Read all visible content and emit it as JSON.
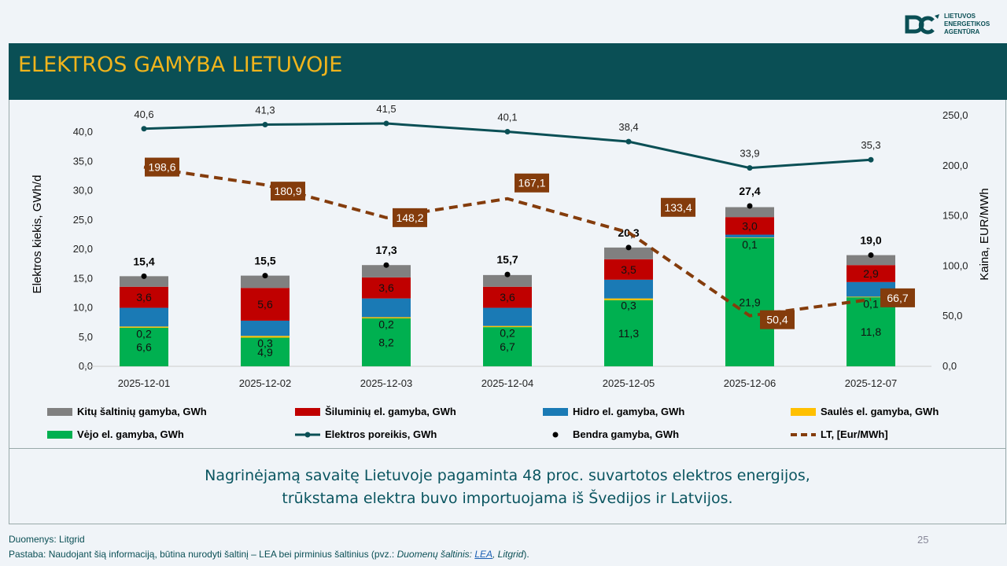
{
  "header": {
    "title": "ELEKTROS GAMYBA LIETUVOJE"
  },
  "logo": {
    "lines": [
      "LIETUVOS",
      "ENERGETIKOS",
      "AGENTŪRA"
    ]
  },
  "chart_data": {
    "type": "bar",
    "stacked": true,
    "categories": [
      "2025-12-01",
      "2025-12-02",
      "2025-12-03",
      "2025-12-04",
      "2025-12-05",
      "2025-12-06",
      "2025-12-07"
    ],
    "ylabel": "Elektros kiekis, GWh/d",
    "y2label": "Kaina, EUR/MWh",
    "ylim": [
      0,
      45
    ],
    "yticks": [
      "0,0",
      "5,0",
      "10,0",
      "15,0",
      "20,0",
      "25,0",
      "30,0",
      "35,0",
      "40,0"
    ],
    "y2lim": [
      0,
      262.5
    ],
    "y2ticks": [
      "0,0",
      "50,0",
      "100,0",
      "150,0",
      "200,0",
      "250,0"
    ],
    "series": [
      {
        "name": "Vėjo el. gamyba, GWh",
        "color": "#00b050",
        "values": [
          6.6,
          4.9,
          8.2,
          6.7,
          11.3,
          21.9,
          11.8
        ],
        "labels": [
          "6,6",
          "4,9",
          "8,2",
          "6,7",
          "11,3",
          "21,9",
          "11,8"
        ]
      },
      {
        "name": "Saulės el. gamyba, GWh",
        "color": "#ffc000",
        "values": [
          0.2,
          0.3,
          0.2,
          0.2,
          0.3,
          0.1,
          0.1
        ],
        "labels": [
          "0,2",
          "0,3",
          "0,2",
          "0,2",
          "0,3",
          "0,1",
          "0,1"
        ]
      },
      {
        "name": "Hidro el. gamyba, GWh",
        "color": "#1a7ab5",
        "values": [
          3.2,
          2.6,
          3.2,
          3.1,
          3.2,
          0.5,
          2.5
        ]
      },
      {
        "name": "Šiluminių el. gamyba, GWh",
        "color": "#c00000",
        "values": [
          3.6,
          5.6,
          3.6,
          3.6,
          3.5,
          3.0,
          2.9
        ],
        "labels": [
          "3,6",
          "5,6",
          "3,6",
          "3,6",
          "3,5",
          "3,0",
          "2,9"
        ]
      },
      {
        "name": "Kitų šaltinių gamyba,  GWh",
        "color": "#808080",
        "values": [
          1.8,
          2.1,
          2.1,
          2.0,
          2.0,
          1.7,
          1.7
        ]
      }
    ],
    "total": {
      "name": "Bendra gamyba, GWh",
      "values": [
        15.4,
        15.5,
        17.3,
        15.7,
        20.3,
        27.4,
        19.0
      ],
      "labels": [
        "15,4",
        "15,5",
        "17,3",
        "15,7",
        "20,3",
        "27,4",
        "19,0"
      ]
    },
    "demand": {
      "name": "Elektros poreikis, GWh",
      "color": "#0a4f55",
      "values": [
        40.6,
        41.3,
        41.5,
        40.1,
        38.4,
        33.9,
        35.3
      ],
      "labels": [
        "40,6",
        "41,3",
        "41,5",
        "40,1",
        "38,4",
        "33,9",
        "35,3"
      ]
    },
    "price": {
      "name": "LT, [Eur/MWh]",
      "color": "#843c0c",
      "values": [
        198.6,
        180.9,
        148.2,
        167.1,
        133.4,
        50.4,
        66.7
      ],
      "labels": [
        "198,6",
        "180,9",
        "148,2",
        "167,1",
        "133,4",
        "50,4",
        "66,7"
      ]
    },
    "legend_position": "bottom"
  },
  "message": [
    "Nagrinėjamą savaitę Lietuvoje pagaminta 48 proc. suvartotos elektros energijos,",
    "trūkstama elektra buvo importuojama iš Švedijos ir Latvijos."
  ],
  "footer": {
    "source": "Duomenys: Litgrid",
    "note_a": "Pastaba: Naudojant šią informaciją, būtina nurodyti šaltinį – LEA bei pirminius šaltinius (pvz.: ",
    "note_b": "Duomenų šaltinis: ",
    "link": "LEA",
    "note_c": ", Litgrid",
    "note_d": ").",
    "page": "25"
  }
}
